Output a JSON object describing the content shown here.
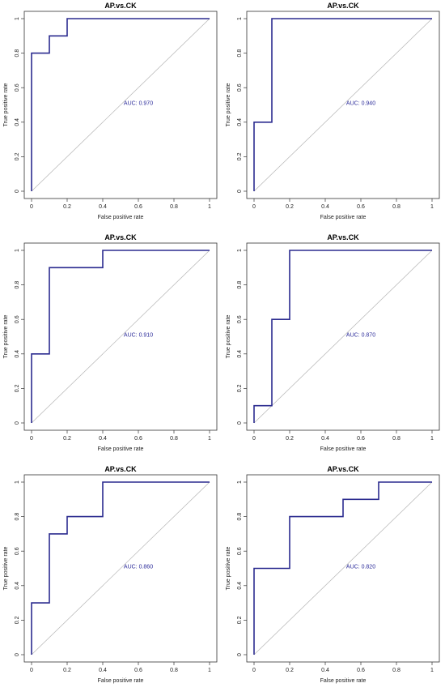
{
  "chart_data": [
    {
      "type": "line",
      "title": "AP.vs.CK",
      "xlabel": "False positive rate",
      "ylabel": "True positive rate",
      "xlim": [
        0,
        1
      ],
      "ylim": [
        0,
        1
      ],
      "xticks": [
        "0",
        "0.2",
        "0.4",
        "0.6",
        "0.8",
        "1"
      ],
      "yticks": [
        "0",
        "0.2",
        "0.4",
        "0.6",
        "0.8",
        "1"
      ],
      "grid": false,
      "series": [
        {
          "x": [
            0,
            0,
            0.1,
            0.1,
            0.2,
            0.2,
            1
          ],
          "y": [
            0,
            0.8,
            0.8,
            0.9,
            0.9,
            1,
            1
          ],
          "color": "#2b2b8f"
        }
      ],
      "diagonal": true,
      "annotation": "AUC: 0.970"
    },
    {
      "type": "line",
      "title": "AP.vs.CK",
      "xlabel": "False positive rate",
      "ylabel": "True positive rate",
      "xlim": [
        0,
        1
      ],
      "ylim": [
        0,
        1
      ],
      "xticks": [
        "0",
        "0.2",
        "0.4",
        "0.6",
        "0.8",
        "1"
      ],
      "yticks": [
        "0",
        "0.2",
        "0.4",
        "0.6",
        "0.8",
        "1"
      ],
      "grid": false,
      "series": [
        {
          "x": [
            0,
            0,
            0.1,
            0.1,
            1
          ],
          "y": [
            0,
            0.4,
            0.4,
            1,
            1
          ],
          "color": "#2b2b8f"
        }
      ],
      "diagonal": true,
      "annotation": "AUC: 0.940"
    },
    {
      "type": "line",
      "title": "AP.vs.CK",
      "xlabel": "False positive rate",
      "ylabel": "True positive rate",
      "xlim": [
        0,
        1
      ],
      "ylim": [
        0,
        1
      ],
      "xticks": [
        "0",
        "0.2",
        "0.4",
        "0.6",
        "0.8",
        "1"
      ],
      "yticks": [
        "0",
        "0.2",
        "0.4",
        "0.6",
        "0.8",
        "1"
      ],
      "grid": false,
      "series": [
        {
          "x": [
            0,
            0,
            0.1,
            0.1,
            0.4,
            0.4,
            1
          ],
          "y": [
            0,
            0.4,
            0.4,
            0.9,
            0.9,
            1,
            1
          ],
          "color": "#2b2b8f"
        }
      ],
      "diagonal": true,
      "annotation": "AUC: 0.910"
    },
    {
      "type": "line",
      "title": "AP.vs.CK",
      "xlabel": "False positive rate",
      "ylabel": "True positive rate",
      "xlim": [
        0,
        1
      ],
      "ylim": [
        0,
        1
      ],
      "xticks": [
        "0",
        "0.2",
        "0.4",
        "0.6",
        "0.8",
        "1"
      ],
      "yticks": [
        "0",
        "0.2",
        "0.4",
        "0.6",
        "0.8",
        "1"
      ],
      "grid": false,
      "series": [
        {
          "x": [
            0,
            0,
            0.1,
            0.1,
            0.2,
            0.2,
            1
          ],
          "y": [
            0,
            0.1,
            0.1,
            0.6,
            0.6,
            1,
            1
          ],
          "color": "#2b2b8f"
        }
      ],
      "diagonal": true,
      "annotation": "AUC: 0.870"
    },
    {
      "type": "line",
      "title": "AP.vs.CK",
      "xlabel": "False positive rate",
      "ylabel": "True positive rate",
      "xlim": [
        0,
        1
      ],
      "ylim": [
        0,
        1
      ],
      "xticks": [
        "0",
        "0.2",
        "0.4",
        "0.6",
        "0.8",
        "1"
      ],
      "yticks": [
        "0",
        "0.2",
        "0.4",
        "0.6",
        "0.8",
        "1"
      ],
      "grid": false,
      "series": [
        {
          "x": [
            0,
            0,
            0.1,
            0.1,
            0.2,
            0.2,
            0.4,
            0.4,
            1
          ],
          "y": [
            0,
            0.3,
            0.3,
            0.7,
            0.7,
            0.8,
            0.8,
            1,
            1
          ],
          "color": "#2b2b8f"
        }
      ],
      "diagonal": true,
      "annotation": "AUC: 0.860"
    },
    {
      "type": "line",
      "title": "AP.vs.CK",
      "xlabel": "False positive rate",
      "ylabel": "True positive rate",
      "xlim": [
        0,
        1
      ],
      "ylim": [
        0,
        1
      ],
      "xticks": [
        "0",
        "0.2",
        "0.4",
        "0.6",
        "0.8",
        "1"
      ],
      "yticks": [
        "0",
        "0.2",
        "0.4",
        "0.6",
        "0.8",
        "1"
      ],
      "grid": false,
      "series": [
        {
          "x": [
            0,
            0,
            0.2,
            0.2,
            0.5,
            0.5,
            0.7,
            0.7,
            1
          ],
          "y": [
            0,
            0.5,
            0.5,
            0.8,
            0.8,
            0.9,
            0.9,
            1,
            1
          ],
          "color": "#2b2b8f"
        }
      ],
      "diagonal": true,
      "annotation": "AUC: 0.820"
    }
  ]
}
